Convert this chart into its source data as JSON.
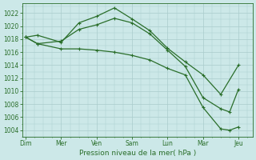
{
  "bg_color": "#cce8e8",
  "grid_color": "#aacccc",
  "line_color": "#2a6e2a",
  "text_color": "#2a6e2a",
  "xlabel_text": "Pression niveau de la mer( hPa )",
  "x_tick_labels": [
    "Dim",
    "Mer",
    "Ven",
    "Sam",
    "Lun",
    "Mar",
    "Jeu"
  ],
  "x_tick_positions": [
    0,
    1,
    2,
    3,
    4,
    5,
    6
  ],
  "xlim": [
    -0.1,
    6.4
  ],
  "ylim": [
    1003.0,
    1023.5
  ],
  "yticks": [
    1004,
    1006,
    1008,
    1010,
    1012,
    1014,
    1016,
    1018,
    1020,
    1022
  ],
  "series": [
    {
      "x": [
        0,
        0.33,
        1.0,
        1.5,
        2.0,
        2.5,
        3.0,
        3.5,
        4.0,
        4.5,
        5.0,
        5.5,
        6.0
      ],
      "y": [
        1018.3,
        1018.6,
        1017.5,
        1020.5,
        1021.5,
        1022.8,
        1021.1,
        1019.3,
        1016.6,
        1014.5,
        1012.5,
        1009.5,
        1014.0
      ]
    },
    {
      "x": [
        0,
        0.33,
        1.0,
        1.5,
        2.0,
        2.5,
        3.0,
        3.5,
        4.0,
        4.5,
        5.0,
        5.5,
        5.75,
        6.0
      ],
      "y": [
        1018.3,
        1017.3,
        1017.7,
        1019.5,
        1020.2,
        1021.2,
        1020.5,
        1018.8,
        1016.3,
        1013.8,
        1009.0,
        1007.3,
        1006.8,
        1010.3
      ]
    },
    {
      "x": [
        0,
        0.33,
        1.0,
        1.5,
        2.0,
        2.5,
        3.0,
        3.5,
        4.0,
        4.5,
        5.0,
        5.5,
        5.75,
        6.0
      ],
      "y": [
        1018.3,
        1017.3,
        1016.5,
        1016.5,
        1016.3,
        1016.0,
        1015.5,
        1014.8,
        1013.5,
        1012.5,
        1007.5,
        1004.2,
        1004.0,
        1004.5
      ]
    }
  ],
  "figsize": [
    3.2,
    2.0
  ],
  "dpi": 100,
  "tick_fontsize": 5.5,
  "xlabel_fontsize": 6.5,
  "linewidth": 0.9,
  "markersize": 2.5
}
